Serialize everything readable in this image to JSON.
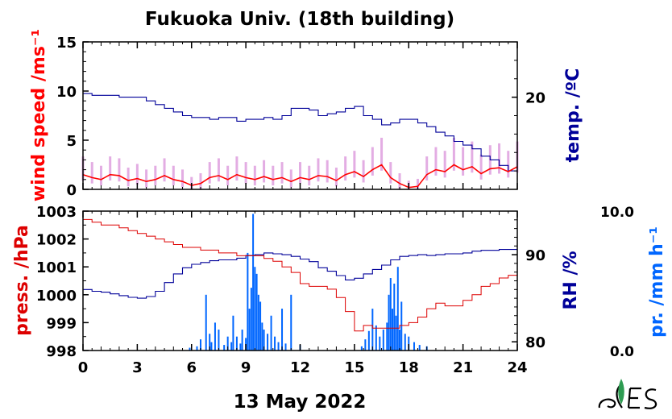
{
  "title": "Fukuoka Univ. (18th building)",
  "date_label": "13 May 2022",
  "colors": {
    "wind": "#ff0000",
    "wind_raw": "#dd99dd",
    "temp": "#000099",
    "pressure": "#dd0000",
    "rh": "#000099",
    "precip": "#0066ff",
    "axis": "#000000"
  },
  "chart_data": [
    {
      "type": "line",
      "panel": "upper",
      "x_ticks": [
        0,
        3,
        6,
        9,
        12,
        15,
        18,
        21,
        24
      ],
      "xlim": [
        0,
        24
      ],
      "left_axis": {
        "label": "wind speed /ms⁻¹",
        "ylim": [
          0,
          15
        ],
        "ticks": [
          "0",
          "5",
          "10",
          "15"
        ]
      },
      "right_axis": {
        "label": "temp. /ºC",
        "ylim": [
          15,
          23
        ],
        "ticks": [
          "20"
        ]
      },
      "series": [
        {
          "axis": "left",
          "color": "wind",
          "x": [
            0,
            0.5,
            1,
            1.5,
            2,
            2.5,
            3,
            3.5,
            4,
            4.5,
            5,
            5.5,
            6,
            6.5,
            7,
            7.5,
            8,
            8.5,
            9,
            9.5,
            10,
            10.5,
            11,
            11.5,
            12,
            12.5,
            13,
            13.5,
            14,
            14.5,
            15,
            15.5,
            16,
            16.5,
            17,
            17.5,
            18,
            18.5,
            19,
            19.5,
            20,
            20.5,
            21,
            21.5,
            22,
            22.5,
            23,
            23.5,
            24
          ],
          "y": [
            1.5,
            1.2,
            1.0,
            1.5,
            1.4,
            0.9,
            1.1,
            0.8,
            1.0,
            1.4,
            1.0,
            0.8,
            0.4,
            0.6,
            1.2,
            1.4,
            1.0,
            1.5,
            1.2,
            1.0,
            1.3,
            1.0,
            1.2,
            0.8,
            1.2,
            1.0,
            1.4,
            1.3,
            0.9,
            1.5,
            1.8,
            1.3,
            2.0,
            2.5,
            1.2,
            0.6,
            0.2,
            0.3,
            1.5,
            2.0,
            1.8,
            2.5,
            2.0,
            2.3,
            1.6,
            2.1,
            2.2,
            1.8,
            2.3
          ]
        },
        {
          "axis": "right",
          "color": "temp",
          "x": [
            0,
            0.5,
            1,
            1.5,
            2,
            2.5,
            3,
            3.5,
            4,
            4.5,
            5,
            5.5,
            6,
            6.5,
            7,
            7.5,
            8,
            8.5,
            9,
            9.5,
            10,
            10.5,
            11,
            11.5,
            12,
            12.5,
            13,
            13.5,
            14,
            14.5,
            15,
            15.5,
            16,
            16.5,
            17,
            17.5,
            18,
            18.5,
            19,
            19.5,
            20,
            20.5,
            21,
            21.5,
            22,
            22.5,
            23,
            23.5,
            24
          ],
          "y": [
            20.2,
            20.1,
            20.1,
            20.1,
            20.0,
            20.0,
            20.0,
            19.8,
            19.6,
            19.4,
            19.2,
            19.0,
            18.9,
            18.9,
            18.8,
            18.9,
            18.9,
            18.7,
            18.8,
            18.8,
            18.9,
            18.8,
            19.0,
            19.4,
            19.4,
            19.3,
            19.0,
            19.1,
            19.2,
            19.4,
            19.5,
            19.0,
            18.8,
            18.5,
            18.6,
            18.8,
            18.8,
            18.6,
            18.4,
            18.1,
            17.9,
            17.6,
            17.4,
            17.2,
            16.8,
            16.6,
            16.3,
            16.0,
            16.0
          ]
        }
      ]
    },
    {
      "type": "line",
      "panel": "lower",
      "x_ticks": [
        0,
        3,
        6,
        9,
        12,
        15,
        18,
        21,
        24
      ],
      "xlim": [
        0,
        24
      ],
      "left_axis": {
        "label": "press. /hPa",
        "ylim": [
          998,
          1003
        ],
        "ticks": [
          "998",
          "999",
          "1000",
          "1001",
          "1002",
          "1003"
        ]
      },
      "right_axis": {
        "label": "RH /%",
        "ylim": [
          79,
          95
        ],
        "ticks": [
          "80",
          "90"
        ]
      },
      "precip_axis": {
        "label": "pr. /mm h⁻¹",
        "ylim": [
          0,
          10
        ],
        "ticks": [
          "0.0",
          "10.0"
        ]
      },
      "series": [
        {
          "axis": "left",
          "color": "pressure",
          "x": [
            0,
            0.5,
            1,
            1.5,
            2,
            2.5,
            3,
            3.5,
            4,
            4.5,
            5,
            5.5,
            6,
            6.5,
            7,
            7.5,
            8,
            8.5,
            9,
            9.5,
            10,
            10.5,
            11,
            11.5,
            12,
            12.5,
            13,
            13.5,
            14,
            14.5,
            15,
            15.5,
            16,
            16.5,
            17,
            17.5,
            18,
            18.5,
            19,
            19.5,
            20,
            20.5,
            21,
            21.5,
            22,
            22.5,
            23,
            23.5,
            24
          ],
          "y": [
            1002.7,
            1002.6,
            1002.5,
            1002.5,
            1002.4,
            1002.3,
            1002.2,
            1002.1,
            1002.0,
            1001.9,
            1001.8,
            1001.7,
            1001.7,
            1001.6,
            1001.6,
            1001.5,
            1001.5,
            1001.4,
            1001.4,
            1001.4,
            1001.3,
            1001.2,
            1001.0,
            1000.8,
            1000.4,
            1000.3,
            1000.3,
            1000.2,
            999.9,
            999.4,
            998.7,
            998.9,
            998.8,
            998.8,
            998.8,
            998.9,
            999.0,
            999.2,
            999.5,
            999.7,
            999.6,
            999.6,
            999.8,
            1000.0,
            1000.3,
            1000.4,
            1000.6,
            1000.7,
            1000.9
          ]
        },
        {
          "axis": "right",
          "color": "rh",
          "x": [
            0,
            0.5,
            1,
            1.5,
            2,
            2.5,
            3,
            3.5,
            4,
            4.5,
            5,
            5.5,
            6,
            6.5,
            7,
            7.5,
            8,
            8.5,
            9,
            9.5,
            10,
            10.5,
            11,
            11.5,
            12,
            12.5,
            13,
            13.5,
            14,
            14.5,
            15,
            15.5,
            16,
            16.5,
            17,
            17.5,
            18,
            18.5,
            19,
            19.5,
            20,
            20.5,
            21,
            21.5,
            22,
            22.5,
            23,
            23.5,
            24
          ],
          "y": [
            86.0,
            85.8,
            85.7,
            85.5,
            85.3,
            85.1,
            85.0,
            85.2,
            85.8,
            86.8,
            87.8,
            88.5,
            88.9,
            89.1,
            89.3,
            89.4,
            89.4,
            89.6,
            89.9,
            90.0,
            90.2,
            90.1,
            90.0,
            89.8,
            89.5,
            89.2,
            88.5,
            88.1,
            87.6,
            87.1,
            87.3,
            87.8,
            88.3,
            88.8,
            89.4,
            89.8,
            89.9,
            90.0,
            89.9,
            90.0,
            90.1,
            90.1,
            90.2,
            90.4,
            90.5,
            90.5,
            90.6,
            90.6,
            90.6
          ]
        }
      ],
      "precip": {
        "axis": "precip",
        "color": "precip",
        "x": [
          5.9,
          6.3,
          6.5,
          6.8,
          7.0,
          7.1,
          7.3,
          7.5,
          7.8,
          8.0,
          8.2,
          8.3,
          8.5,
          8.7,
          8.8,
          9.0,
          9.1,
          9.2,
          9.3,
          9.4,
          9.5,
          9.6,
          9.7,
          9.8,
          9.9,
          10.0,
          10.2,
          10.4,
          10.6,
          10.8,
          11.0,
          11.2,
          11.5,
          12.0,
          15.4,
          15.6,
          15.8,
          16.0,
          16.2,
          16.4,
          16.6,
          16.8,
          16.9,
          17.0,
          17.1,
          17.2,
          17.3,
          17.4,
          17.5,
          17.6,
          17.8,
          18.0,
          18.3,
          18.6,
          19.0
        ],
        "y": [
          0.2,
          0.3,
          0.8,
          4.0,
          1.2,
          0.6,
          2.0,
          1.5,
          0.4,
          1.0,
          0.6,
          2.5,
          1.0,
          0.5,
          1.5,
          0.9,
          7.0,
          3.0,
          4.5,
          9.8,
          6.0,
          5.5,
          4.0,
          3.5,
          2.0,
          1.5,
          1.2,
          2.5,
          1.0,
          0.6,
          3.0,
          0.5,
          4.0,
          0.4,
          0.3,
          0.8,
          1.4,
          3.0,
          1.8,
          1.0,
          1.5,
          2.0,
          4.0,
          5.2,
          3.0,
          4.8,
          2.5,
          6.0,
          1.5,
          3.5,
          1.2,
          1.0,
          0.6,
          0.4,
          0.3
        ]
      }
    }
  ]
}
